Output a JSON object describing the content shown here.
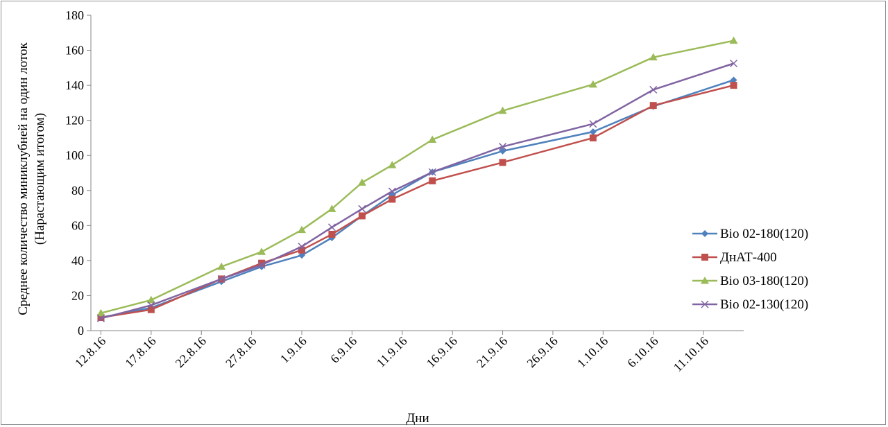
{
  "chart_data": {
    "type": "line",
    "title": "",
    "xlabel": "Дни",
    "ylabel_line1": "Среднее количество миниклубней на один лоток",
    "ylabel_line2": "(Нарастающим итогом)",
    "ylim": [
      0,
      180
    ],
    "yticks": [
      0,
      20,
      40,
      60,
      80,
      100,
      120,
      140,
      160,
      180
    ],
    "xlim": [
      "11.8.16",
      "15.10.16"
    ],
    "xticks": [
      "12.8.16",
      "17.8.16",
      "22.8.16",
      "27.8.16",
      "1.9.16",
      "6.9.16",
      "11.9.16",
      "16.9.16",
      "21.9.16",
      "26.9.16",
      "1.10.16",
      "6.10.16",
      "11.10.16"
    ],
    "x": [
      "12.8.16",
      "17.8.16",
      "24.8.16",
      "28.8.16",
      "1.9.16",
      "4.9.16",
      "7.9.16",
      "10.9.16",
      "14.9.16",
      "21.9.16",
      "30.9.16",
      "6.10.16",
      "14.10.16"
    ],
    "grid": false,
    "legend_position": "right",
    "series": [
      {
        "name": "Bio 02-180(120)",
        "color": "#4f81bd",
        "marker": "diamond",
        "values": [
          7.5,
          13,
          28,
          36.5,
          43,
          53,
          65.5,
          77.5,
          90.5,
          102.5,
          113.5,
          128,
          143
        ]
      },
      {
        "name": "ДнАТ-400",
        "color": "#c0504d",
        "marker": "square",
        "values": [
          7.5,
          12,
          29.5,
          38.5,
          46,
          55,
          65.5,
          75,
          85.5,
          96,
          110,
          128.5,
          140
        ]
      },
      {
        "name": "Bio 03-180(120)",
        "color": "#9bbb59",
        "marker": "triangle",
        "values": [
          10,
          17.5,
          36.5,
          45,
          57.5,
          69.5,
          84.5,
          94.5,
          109,
          125.5,
          140.5,
          156,
          165.5
        ]
      },
      {
        "name": "Bio 02-130(120)",
        "color": "#8064a2",
        "marker": "x",
        "values": [
          7,
          14.5,
          29.5,
          37.5,
          48,
          59,
          69.5,
          79.5,
          90.5,
          105,
          118,
          137.5,
          152.5
        ]
      }
    ]
  }
}
